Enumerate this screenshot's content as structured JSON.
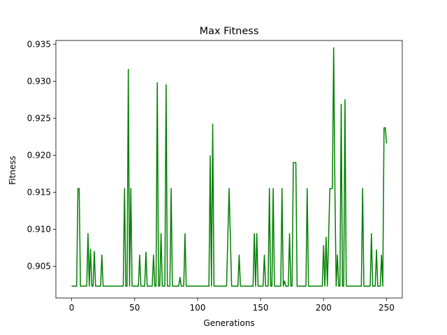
{
  "chart_data": {
    "type": "line",
    "title": "Max Fitness",
    "xlabel": "Generations",
    "ylabel": "Fitness",
    "xlim": [
      -12.5,
      262.5
    ],
    "ylim": [
      0.9007,
      0.9355
    ],
    "xticks": [
      0,
      50,
      100,
      150,
      200,
      250
    ],
    "xtick_labels": [
      "0",
      "50",
      "100",
      "150",
      "200",
      "250"
    ],
    "yticks": [
      0.905,
      0.91,
      0.915,
      0.92,
      0.925,
      0.93,
      0.935
    ],
    "ytick_labels": [
      "0.905",
      "0.910",
      "0.915",
      "0.920",
      "0.925",
      "0.930",
      "0.935"
    ],
    "grid": false,
    "legend": "none",
    "series": [
      {
        "color": "#008000",
        "points": [
          [
            0,
            0.9023
          ],
          [
            4,
            0.9023
          ],
          [
            5,
            0.9155
          ],
          [
            6,
            0.9155
          ],
          [
            7,
            0.9023
          ],
          [
            12,
            0.9023
          ],
          [
            13,
            0.9094
          ],
          [
            14,
            0.9023
          ],
          [
            15,
            0.9073
          ],
          [
            16,
            0.9023
          ],
          [
            17,
            0.9023
          ],
          [
            18,
            0.907
          ],
          [
            19,
            0.9023
          ],
          [
            23,
            0.9023
          ],
          [
            24,
            0.9065
          ],
          [
            25,
            0.9023
          ],
          [
            41,
            0.9023
          ],
          [
            42,
            0.9155
          ],
          [
            43,
            0.9023
          ],
          [
            44,
            0.9023
          ],
          [
            45,
            0.9316
          ],
          [
            46,
            0.9023
          ],
          [
            47,
            0.9155
          ],
          [
            48,
            0.9023
          ],
          [
            53,
            0.9023
          ],
          [
            54,
            0.9065
          ],
          [
            55,
            0.9023
          ],
          [
            58,
            0.9023
          ],
          [
            59,
            0.9069
          ],
          [
            60,
            0.9023
          ],
          [
            64,
            0.9023
          ],
          [
            65,
            0.9065
          ],
          [
            66,
            0.9023
          ],
          [
            67,
            0.9023
          ],
          [
            68,
            0.9298
          ],
          [
            69,
            0.9023
          ],
          [
            70,
            0.9023
          ],
          [
            71,
            0.9094
          ],
          [
            72,
            0.9023
          ],
          [
            74,
            0.9023
          ],
          [
            75,
            0.9295
          ],
          [
            76,
            0.9023
          ],
          [
            78,
            0.9023
          ],
          [
            79,
            0.9155
          ],
          [
            80,
            0.9023
          ],
          [
            85,
            0.9023
          ],
          [
            86,
            0.9035
          ],
          [
            87,
            0.9023
          ],
          [
            89,
            0.9023
          ],
          [
            90,
            0.9094
          ],
          [
            91,
            0.9023
          ],
          [
            109,
            0.9023
          ],
          [
            110,
            0.9199
          ],
          [
            111,
            0.9023
          ],
          [
            112,
            0.9242
          ],
          [
            113,
            0.9023
          ],
          [
            123,
            0.9023
          ],
          [
            125,
            0.9155
          ],
          [
            127,
            0.9023
          ],
          [
            132,
            0.9023
          ],
          [
            133,
            0.9065
          ],
          [
            134,
            0.9023
          ],
          [
            144,
            0.9023
          ],
          [
            145,
            0.9094
          ],
          [
            146,
            0.9023
          ],
          [
            147,
            0.9094
          ],
          [
            148,
            0.9023
          ],
          [
            152,
            0.9023
          ],
          [
            153,
            0.9065
          ],
          [
            154,
            0.9023
          ],
          [
            156,
            0.9023
          ],
          [
            157,
            0.9155
          ],
          [
            158,
            0.9023
          ],
          [
            159,
            0.9023
          ],
          [
            160,
            0.9155
          ],
          [
            161,
            0.9023
          ],
          [
            166,
            0.9023
          ],
          [
            167,
            0.9155
          ],
          [
            168,
            0.9023
          ],
          [
            169,
            0.903
          ],
          [
            170,
            0.9023
          ],
          [
            172,
            0.9023
          ],
          [
            173,
            0.9094
          ],
          [
            174,
            0.9023
          ],
          [
            175,
            0.9023
          ],
          [
            176,
            0.919
          ],
          [
            178,
            0.919
          ],
          [
            179,
            0.9023
          ],
          [
            186,
            0.9023
          ],
          [
            187,
            0.9155
          ],
          [
            188,
            0.9023
          ],
          [
            199,
            0.9023
          ],
          [
            200,
            0.9078
          ],
          [
            201,
            0.9023
          ],
          [
            202,
            0.9089
          ],
          [
            203,
            0.9023
          ],
          [
            205,
            0.9155
          ],
          [
            207,
            0.9155
          ],
          [
            208,
            0.9345
          ],
          [
            209,
            0.9155
          ],
          [
            210,
            0.9023
          ],
          [
            211,
            0.9065
          ],
          [
            212,
            0.9023
          ],
          [
            213,
            0.9023
          ],
          [
            214,
            0.9269
          ],
          [
            215,
            0.9023
          ],
          [
            216,
            0.9023
          ],
          [
            217,
            0.9275
          ],
          [
            218,
            0.9023
          ],
          [
            230,
            0.9023
          ],
          [
            231,
            0.9155
          ],
          [
            232,
            0.9023
          ],
          [
            237,
            0.9023
          ],
          [
            238,
            0.9094
          ],
          [
            239,
            0.9023
          ],
          [
            241,
            0.9023
          ],
          [
            242,
            0.9072
          ],
          [
            243,
            0.9023
          ],
          [
            245,
            0.9023
          ],
          [
            246,
            0.9065
          ],
          [
            247,
            0.9023
          ],
          [
            248,
            0.9237
          ],
          [
            249,
            0.9237
          ],
          [
            250,
            0.9216
          ]
        ]
      }
    ]
  }
}
